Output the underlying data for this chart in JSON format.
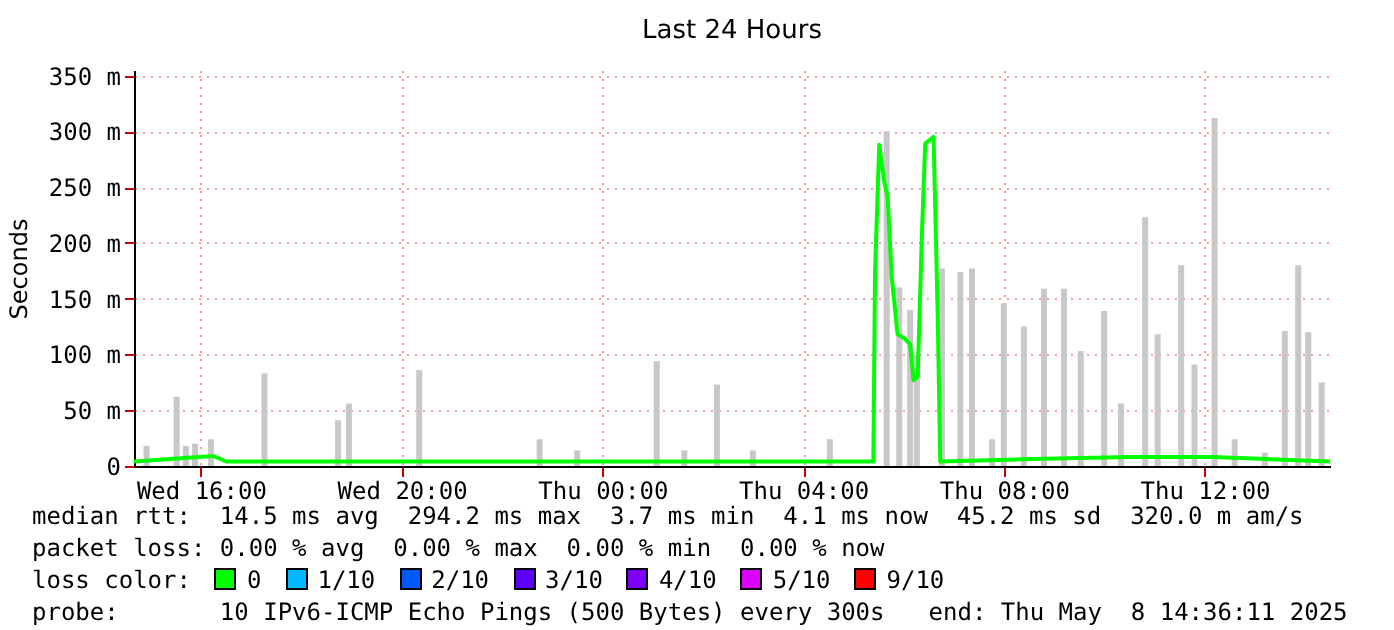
{
  "chart_data": {
    "type": "line",
    "title": "Last 24 Hours",
    "ylabel": "Seconds",
    "xlim": [
      "2025-05-07T14:40",
      "2025-05-08T14:30"
    ],
    "xticks": [
      {
        "value": "2025-05-07T16:00",
        "label": "Wed 16:00"
      },
      {
        "value": "2025-05-07T20:00",
        "label": "Wed 20:00"
      },
      {
        "value": "2025-05-08T00:00",
        "label": "Thu 00:00"
      },
      {
        "value": "2025-05-08T04:00",
        "label": "Thu 04:00"
      },
      {
        "value": "2025-05-08T08:00",
        "label": "Thu 08:00"
      },
      {
        "value": "2025-05-08T12:00",
        "label": "Thu 12:00"
      }
    ],
    "ylim": [
      0,
      355
    ],
    "yticks": [
      0,
      {
        "value": 50,
        "label": "50 m"
      },
      {
        "value": 100,
        "label": "100 m"
      },
      {
        "value": 150,
        "label": "150 m"
      },
      {
        "value": 200,
        "label": "200 m"
      },
      {
        "value": 250,
        "label": "250 m"
      },
      {
        "value": 300,
        "label": "300 m"
      },
      {
        "value": 350,
        "label": "350 m"
      }
    ],
    "grid": true,
    "series": [
      {
        "type": "bar",
        "color": "#c8c8c8",
        "x": [
          "2025-05-07T14:55",
          "2025-05-07T15:31",
          "2025-05-07T15:42",
          "2025-05-07T15:53",
          "2025-05-07T16:12",
          "2025-05-07T17:16",
          "2025-05-07T18:44",
          "2025-05-07T18:57",
          "2025-05-07T20:21",
          "2025-05-07T22:45",
          "2025-05-07T23:30",
          "2025-05-08T01:05",
          "2025-05-08T01:38",
          "2025-05-08T02:17",
          "2025-05-08T03:00",
          "2025-05-08T04:32",
          "2025-05-08T05:32",
          "2025-05-08T05:40",
          "2025-05-08T05:55",
          "2025-05-08T06:08",
          "2025-05-08T06:16",
          "2025-05-08T06:27",
          "2025-05-08T06:36",
          "2025-05-08T06:46",
          "2025-05-08T07:08",
          "2025-05-08T07:22",
          "2025-05-08T07:46",
          "2025-05-08T08:00",
          "2025-05-08T08:24",
          "2025-05-08T08:48",
          "2025-05-08T09:12",
          "2025-05-08T09:32",
          "2025-05-08T10:00",
          "2025-05-08T10:20",
          "2025-05-08T10:49",
          "2025-05-08T11:04",
          "2025-05-08T11:32",
          "2025-05-08T11:48",
          "2025-05-08T12:12",
          "2025-05-08T12:36",
          "2025-05-08T13:12",
          "2025-05-08T13:36",
          "2025-05-08T13:52",
          "2025-05-08T14:04",
          "2025-05-08T14:20"
        ],
        "values": [
          18,
          62,
          18,
          20,
          24,
          83,
          41,
          56,
          86,
          24,
          14,
          94,
          14,
          73,
          14,
          24,
          null,
          300,
          160,
          140,
          100,
          null,
          null,
          177,
          174,
          177,
          24,
          146,
          125,
          159,
          159,
          103,
          139,
          56,
          223,
          118,
          180,
          91,
          312,
          24,
          12,
          121,
          180,
          120,
          75
        ]
      },
      {
        "color": "#00ff00",
        "x": [
          "2025-05-07T14:40",
          "2025-05-07T16:15",
          "2025-05-07T16:30",
          "2025-05-08T05:24",
          "2025-05-08T05:26",
          "2025-05-08T05:31",
          "2025-05-08T05:37",
          "2025-05-08T05:41",
          "2025-05-08T05:46",
          "2025-05-08T05:53",
          "2025-05-08T06:02",
          "2025-05-08T06:08",
          "2025-05-08T06:12",
          "2025-05-08T06:17",
          "2025-05-08T06:22",
          "2025-05-08T06:26",
          "2025-05-08T06:36",
          "2025-05-08T06:41",
          "2025-05-08T06:44",
          "2025-05-08T08:20",
          "2025-05-08T10:30",
          "2025-05-08T12:10",
          "2025-05-08T14:30"
        ],
        "values": [
          4,
          9,
          4,
          4,
          173,
          288,
          255,
          242,
          169,
          118,
          114,
          109,
          77,
          80,
          206,
          289,
          295,
          133,
          4,
          6,
          8,
          8,
          4
        ]
      }
    ],
    "annotations": [
      "median rtt:  14.5 ms avg  294.2 ms max  3.7 ms min  4.1 ms now  45.2 ms sd  320.0 m am/s",
      "packet loss: 0.00 % avg  0.00 % max  0.00 % min  0.00 % now",
      "loss color:",
      "0",
      "1/10",
      "2/10",
      "3/10",
      "4/10",
      "5/10",
      "9/10",
      "probe:       10 IPv6-ICMP Echo Pings (500 Bytes) every 300s",
      "end: Thu May  8 14:36:11 2025"
    ]
  }
}
